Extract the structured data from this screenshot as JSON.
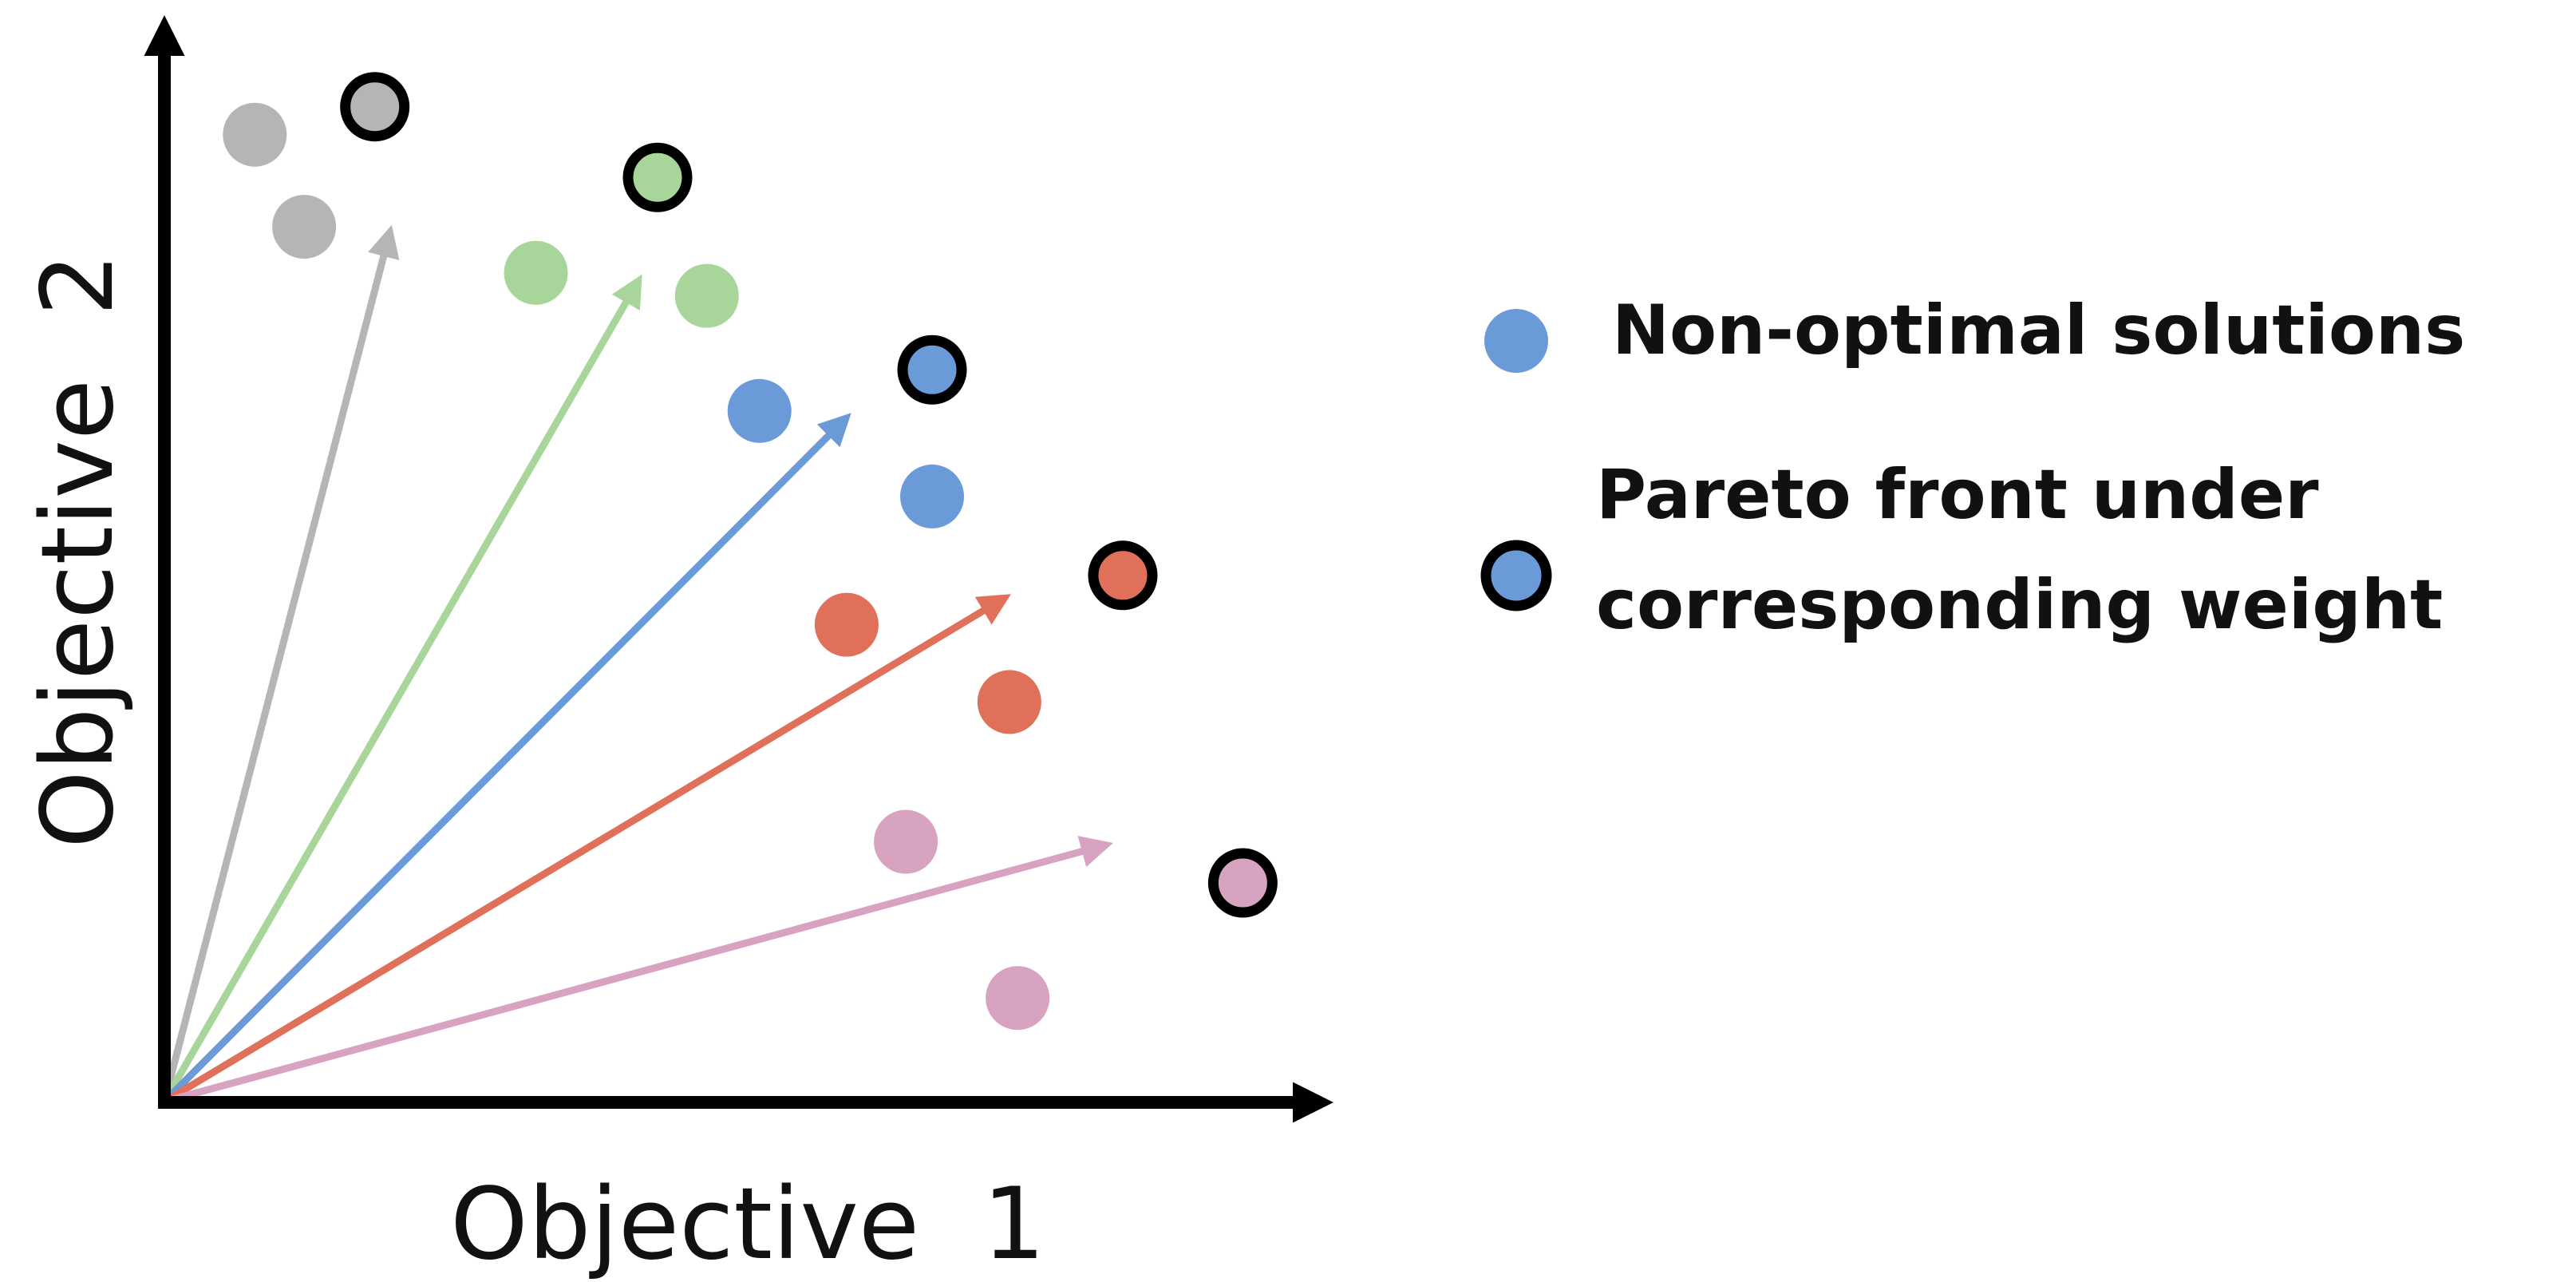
{
  "chart_data": {
    "type": "scatter",
    "title": "",
    "xlabel": "Objective  1",
    "ylabel": "Objective  2",
    "xlim": [
      0,
      715
    ],
    "ylim": [
      0,
      665
    ],
    "grid": false,
    "legend_position": "right",
    "legend": [
      {
        "label": "Non-optimal solutions",
        "marker": "filled-dot"
      },
      {
        "label_lines": [
          "Pareto front under",
          "corresponding weight"
        ],
        "marker": "outlined-dot"
      }
    ],
    "groups": [
      {
        "name": "gray",
        "color": "#b5b5b7",
        "weight_vector": [
          138,
          532
        ],
        "non_optimal": [
          [
            55,
            588
          ],
          [
            85,
            532
          ]
        ],
        "pareto": [
          128,
          605
        ]
      },
      {
        "name": "green",
        "color": "#a8d59a",
        "weight_vector": [
          290,
          502
        ],
        "non_optimal": [
          [
            226,
            504
          ],
          [
            330,
            490
          ]
        ],
        "pareto": [
          300,
          562
        ]
      },
      {
        "name": "blue",
        "color": "#6a9bd8",
        "weight_vector": [
          417,
          418
        ],
        "non_optimal": [
          [
            362,
            420
          ],
          [
            467,
            368
          ]
        ],
        "pareto": [
          467,
          445
        ]
      },
      {
        "name": "red",
        "color": "#e0705a",
        "weight_vector": [
          514,
          308
        ],
        "non_optimal": [
          [
            415,
            290
          ],
          [
            514,
            243
          ]
        ],
        "pareto": [
          583,
          320
        ]
      },
      {
        "name": "pink",
        "color": "#d8a3c1",
        "weight_vector": [
          576,
          157
        ],
        "non_optimal": [
          [
            451,
            158
          ],
          [
            519,
            63
          ]
        ],
        "pareto": [
          656,
          133
        ]
      }
    ]
  }
}
